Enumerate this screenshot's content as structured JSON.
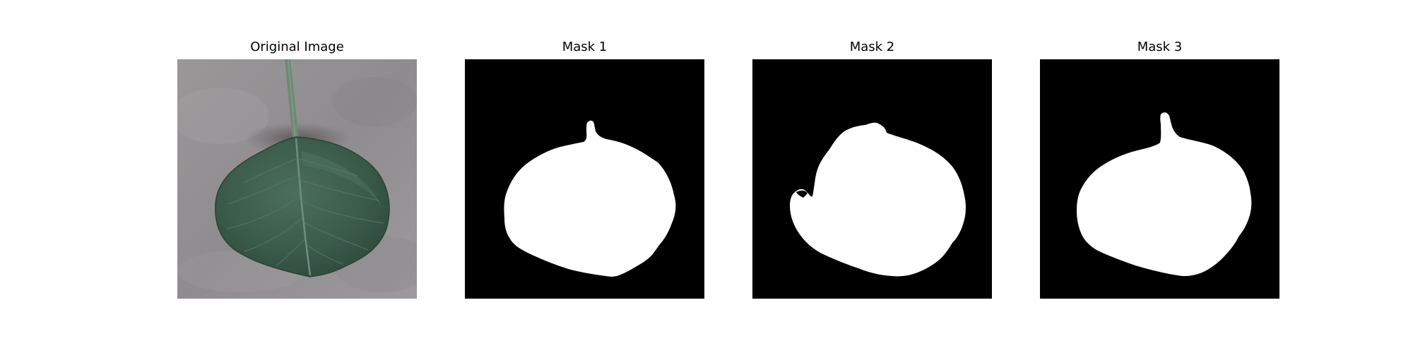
{
  "figure": {
    "panels": [
      {
        "title": "Original Image"
      },
      {
        "title": "Mask 1"
      },
      {
        "title": "Mask 2"
      },
      {
        "title": "Mask 3"
      }
    ]
  }
}
